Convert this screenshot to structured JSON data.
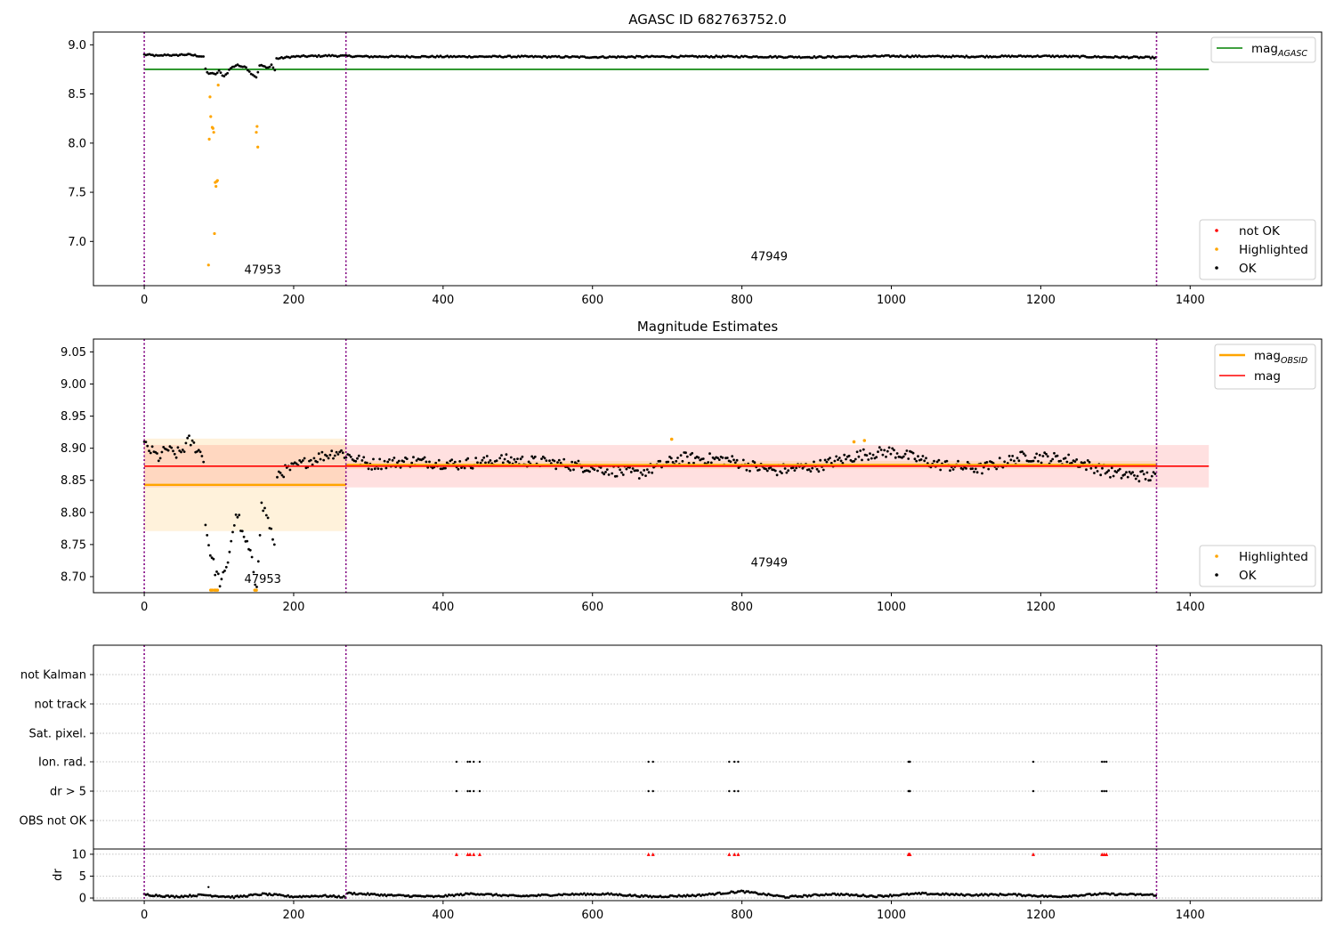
{
  "figure": {
    "title": "AGASC ID 682763752.0",
    "colors": {
      "ok": "#000000",
      "highlighted": "#ffa500",
      "not_ok": "#ff0000",
      "mag_agasc": "#008000",
      "mag": "#ff0000",
      "mag_obsid": "#ffa500",
      "boundary": "#800080"
    }
  },
  "chart_data": [
    {
      "id": "top",
      "type": "scatter",
      "title": "AGASC ID 682763752.0",
      "xlim": [
        -68,
        1576
      ],
      "ylim": [
        6.55,
        9.13
      ],
      "xticks": [
        0,
        200,
        400,
        600,
        800,
        1000,
        1200,
        1400
      ],
      "yticks": [
        7.0,
        7.5,
        8.0,
        8.5,
        9.0
      ],
      "ytick_labels": [
        "7.0",
        "7.5",
        "8.0",
        "8.5",
        "9.0"
      ],
      "boundaries": [
        0,
        270,
        1355
      ],
      "obsid_annotations": [
        {
          "label": "47953",
          "x": 134,
          "y": 6.67
        },
        {
          "label": "47949",
          "x": 812,
          "y": 6.81
        }
      ],
      "mag_agasc": {
        "value": 8.75,
        "x_range": [
          0,
          1425
        ]
      },
      "highlighted_points": [
        [
          86,
          6.76
        ],
        [
          87,
          8.04
        ],
        [
          88,
          8.47
        ],
        [
          89,
          8.27
        ],
        [
          91,
          8.16
        ],
        [
          92,
          8.15
        ],
        [
          93,
          8.11
        ],
        [
          94,
          7.08
        ],
        [
          95,
          7.6
        ],
        [
          96,
          7.56
        ],
        [
          97,
          7.61
        ],
        [
          98,
          7.62
        ],
        [
          99,
          8.59
        ],
        [
          150,
          8.11
        ],
        [
          151,
          8.17
        ],
        [
          152,
          7.96
        ]
      ],
      "ok_series": {
        "segments": [
          {
            "x": [
              0,
              10,
              20,
              30,
              40,
              50,
              60,
              70,
              80
            ],
            "y": [
              8.9,
              8.895,
              8.885,
              8.9,
              8.89,
              8.9,
              8.9,
              8.89,
              8.88
            ]
          },
          {
            "x": [
              82,
              86,
              90,
              95,
              100,
              105,
              110,
              115,
              120,
              125,
              130,
              135,
              140,
              145,
              150,
              155,
              160,
              165,
              170,
              175
            ],
            "y": [
              8.75,
              8.7,
              8.72,
              8.69,
              8.74,
              8.68,
              8.7,
              8.76,
              8.78,
              8.8,
              8.77,
              8.79,
              8.73,
              8.7,
              8.67,
              8.8,
              8.78,
              8.76,
              8.8,
              8.74
            ]
          },
          {
            "x": [
              177,
              200,
              250,
              300,
              400,
              500,
              600,
              700,
              800,
              900,
              1000,
              1100,
              1200,
              1300,
              1355
            ],
            "y": [
              8.86,
              8.88,
              8.89,
              8.88,
              8.88,
              8.88,
              8.875,
              8.88,
              8.88,
              8.875,
              8.885,
              8.88,
              8.885,
              8.875,
              8.87
            ]
          }
        ]
      },
      "legend_lines": [
        {
          "label": "mag",
          "subscript": "AGASC",
          "color": "#008000"
        }
      ],
      "legend_markers": [
        {
          "label": "not OK",
          "color": "#ff0000"
        },
        {
          "label": "Highlighted",
          "color": "#ffa500"
        },
        {
          "label": "OK",
          "color": "#000000"
        }
      ]
    },
    {
      "id": "mid",
      "type": "scatter",
      "title": "Magnitude Estimates",
      "xlim": [
        -68,
        1576
      ],
      "ylim": [
        8.675,
        9.07
      ],
      "xticks": [
        0,
        200,
        400,
        600,
        800,
        1000,
        1200,
        1400
      ],
      "yticks": [
        8.7,
        8.75,
        8.8,
        8.85,
        8.9,
        8.95,
        9.0,
        9.05
      ],
      "ytick_labels": [
        "8.70",
        "8.75",
        "8.80",
        "8.85",
        "8.90",
        "8.95",
        "9.00",
        "9.05"
      ],
      "boundaries": [
        0,
        270,
        1355
      ],
      "obsid_annotations": [
        {
          "label": "47953",
          "x": 134,
          "y": 8.69
        },
        {
          "label": "47949",
          "x": 812,
          "y": 8.716
        }
      ],
      "mag": {
        "value": 8.872,
        "band": [
          8.839,
          8.905
        ],
        "x_range": [
          0,
          1425
        ]
      },
      "mag_obsid": [
        {
          "x_range": [
            0,
            270
          ],
          "value": 8.843,
          "band": [
            8.771,
            8.915
          ]
        },
        {
          "x_range": [
            270,
            1355
          ],
          "value": 8.874,
          "band": [
            8.868,
            8.88
          ]
        }
      ],
      "highlighted_points": [
        [
          89,
          8.679
        ],
        [
          91,
          8.679
        ],
        [
          94,
          8.679
        ],
        [
          96,
          8.679
        ],
        [
          98,
          8.679
        ],
        [
          148,
          8.679
        ],
        [
          150,
          8.679
        ],
        [
          706,
          8.914
        ],
        [
          950,
          8.91
        ],
        [
          964,
          8.912
        ]
      ],
      "ok_series": {
        "segments": [
          {
            "x": [
              0,
              10,
              20,
              30,
              40,
              50,
              60,
              70,
              80
            ],
            "y": [
              8.905,
              8.895,
              8.885,
              8.9,
              8.89,
              8.895,
              8.912,
              8.9,
              8.885
            ]
          },
          {
            "x": [
              82,
              88,
              95,
              102,
              110,
              118,
              125,
              132,
              138,
              145,
              150,
              157,
              163,
              170,
              176
            ],
            "y": [
              8.78,
              8.74,
              8.71,
              8.69,
              8.71,
              8.77,
              8.8,
              8.76,
              8.75,
              8.72,
              8.68,
              8.81,
              8.8,
              8.77,
              8.73
            ]
          },
          {
            "x": [
              178,
              200,
              230,
              260,
              300,
              360,
              420,
              480,
              540,
              600,
              660,
              720,
              780,
              840,
              900,
              960,
              1000,
              1060,
              1120,
              1180,
              1240,
              1300,
              1355
            ],
            "y": [
              8.86,
              8.87,
              8.885,
              8.895,
              8.875,
              8.88,
              8.875,
              8.882,
              8.878,
              8.87,
              8.86,
              8.885,
              8.882,
              8.865,
              8.872,
              8.89,
              8.895,
              8.875,
              8.868,
              8.888,
              8.882,
              8.86,
              8.855
            ]
          }
        ]
      },
      "legend_lines": [
        {
          "label": "mag",
          "subscript": "OBSID",
          "color": "#ffa500"
        },
        {
          "label": "mag",
          "subscript": "",
          "color": "#ff0000"
        }
      ],
      "legend_markers": [
        {
          "label": "Highlighted",
          "color": "#ffa500"
        },
        {
          "label": "OK",
          "color": "#000000"
        }
      ]
    },
    {
      "id": "flags",
      "type": "scatter",
      "xlim": [
        -68,
        1576
      ],
      "categories": [
        "not Kalman",
        "not track",
        "Sat. pixel.",
        "Ion. rad.",
        "dr > 5",
        "OBS not OK"
      ],
      "boundaries": [
        0,
        270,
        1355
      ],
      "flag_points": {
        "Ion. rad.": [
          418,
          433,
          436,
          441,
          449,
          675,
          681,
          783,
          790,
          795,
          1023,
          1024,
          1025,
          1190,
          1282,
          1285,
          1288
        ],
        "dr > 5": [
          418,
          433,
          436,
          441,
          449,
          675,
          681,
          783,
          790,
          795,
          1023,
          1024,
          1025,
          1190,
          1282,
          1285,
          1288
        ]
      }
    },
    {
      "id": "dr",
      "type": "scatter",
      "ylabel": "dr",
      "xlim": [
        -68,
        1576
      ],
      "ylim": [
        -0.6,
        11.2
      ],
      "xticks": [
        0,
        200,
        400,
        600,
        800,
        1000,
        1200,
        1400
      ],
      "yticks": [
        0,
        5,
        10
      ],
      "ytick_labels": [
        "0",
        "5",
        "10"
      ],
      "boundaries": [
        0,
        270,
        1355
      ],
      "clipped_points": [
        418,
        433,
        436,
        441,
        449,
        675,
        681,
        783,
        790,
        795,
        1023,
        1024,
        1025,
        1190,
        1282,
        1285,
        1288
      ],
      "outliers": [
        [
          86,
          2.5
        ]
      ],
      "ok_series": {
        "segments": [
          {
            "x": [
              0,
              40,
              80,
              120,
              160,
              200,
              240,
              270
            ],
            "y": [
              0.8,
              0.3,
              0.7,
              0.2,
              0.9,
              0.3,
              0.5,
              0.2
            ]
          },
          {
            "x": [
              272,
              330,
              390,
              440,
              500,
              560,
              620,
              680,
              740,
              800,
              860,
              920,
              980,
              1040,
              1100,
              1160,
              1220,
              1280,
              1355
            ],
            "y": [
              1.1,
              0.6,
              0.3,
              1.0,
              0.4,
              0.8,
              0.9,
              0.3,
              0.6,
              1.5,
              0.2,
              0.9,
              0.4,
              1.0,
              0.7,
              0.8,
              0.3,
              0.9,
              0.7
            ]
          }
        ]
      }
    }
  ]
}
